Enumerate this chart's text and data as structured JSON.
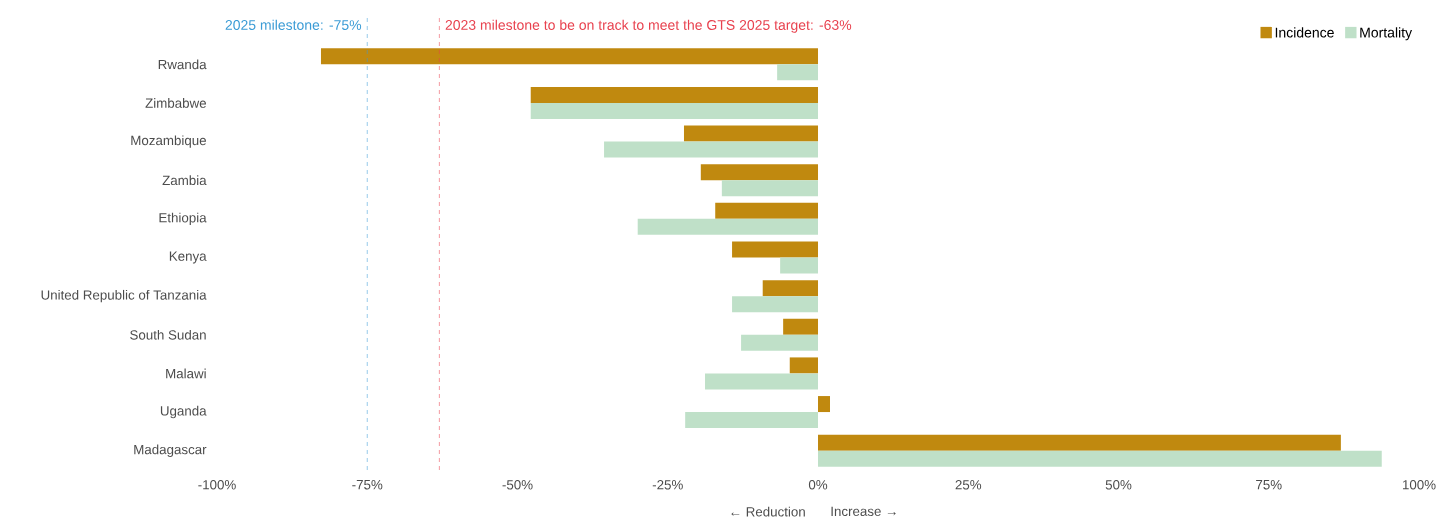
{
  "chart_data": {
    "type": "bar",
    "orientation": "horizontal",
    "categories": [
      "Rwanda",
      "Zimbabwe",
      "Mozambique",
      "Zambia",
      "Ethiopia",
      "Kenya",
      "United Republic of Tanzania",
      "South Sudan",
      "Malawi",
      "Uganda",
      "Madagascar"
    ],
    "series": [
      {
        "name": "Incidence",
        "color": "#c0890f",
        "values": [
          -82.7,
          -47.8,
          -22.3,
          -19.5,
          -17.1,
          -14.3,
          -9.2,
          -5.8,
          -4.7,
          2.0,
          87.0
        ]
      },
      {
        "name": "Mortality",
        "color": "#bfe0c8",
        "values": [
          -6.8,
          -47.8,
          -35.6,
          -16.0,
          -30.0,
          -6.3,
          -14.3,
          -12.8,
          -18.8,
          -22.1,
          93.8
        ]
      }
    ],
    "xlim": [
      -100,
      100
    ],
    "xticks": [
      {
        "value": -100,
        "label": "-100%"
      },
      {
        "value": -75,
        "label": "-75%"
      },
      {
        "value": -50,
        "label": "-50%"
      },
      {
        "value": -25,
        "label": "-25%"
      },
      {
        "value": 0,
        "label": "0%"
      },
      {
        "value": 25,
        "label": "25%"
      },
      {
        "value": 50,
        "label": "50%"
      },
      {
        "value": 75,
        "label": "75%"
      },
      {
        "value": 100,
        "label": "100%"
      }
    ],
    "ref_lines": [
      {
        "axis": "x",
        "value": -75,
        "label": "2025 milestone: -75%",
        "color": "#3a9bd5",
        "line_style": "dashed"
      },
      {
        "axis": "x",
        "value": -63,
        "label": "2023 milestone to be on track to meet the GTS 2025 target: -63%",
        "color": "#e8414e",
        "line_style": "dashed"
      }
    ],
    "annotations": [
      "← Reduction",
      "Increase →"
    ],
    "legend": "top right",
    "grid": false
  }
}
